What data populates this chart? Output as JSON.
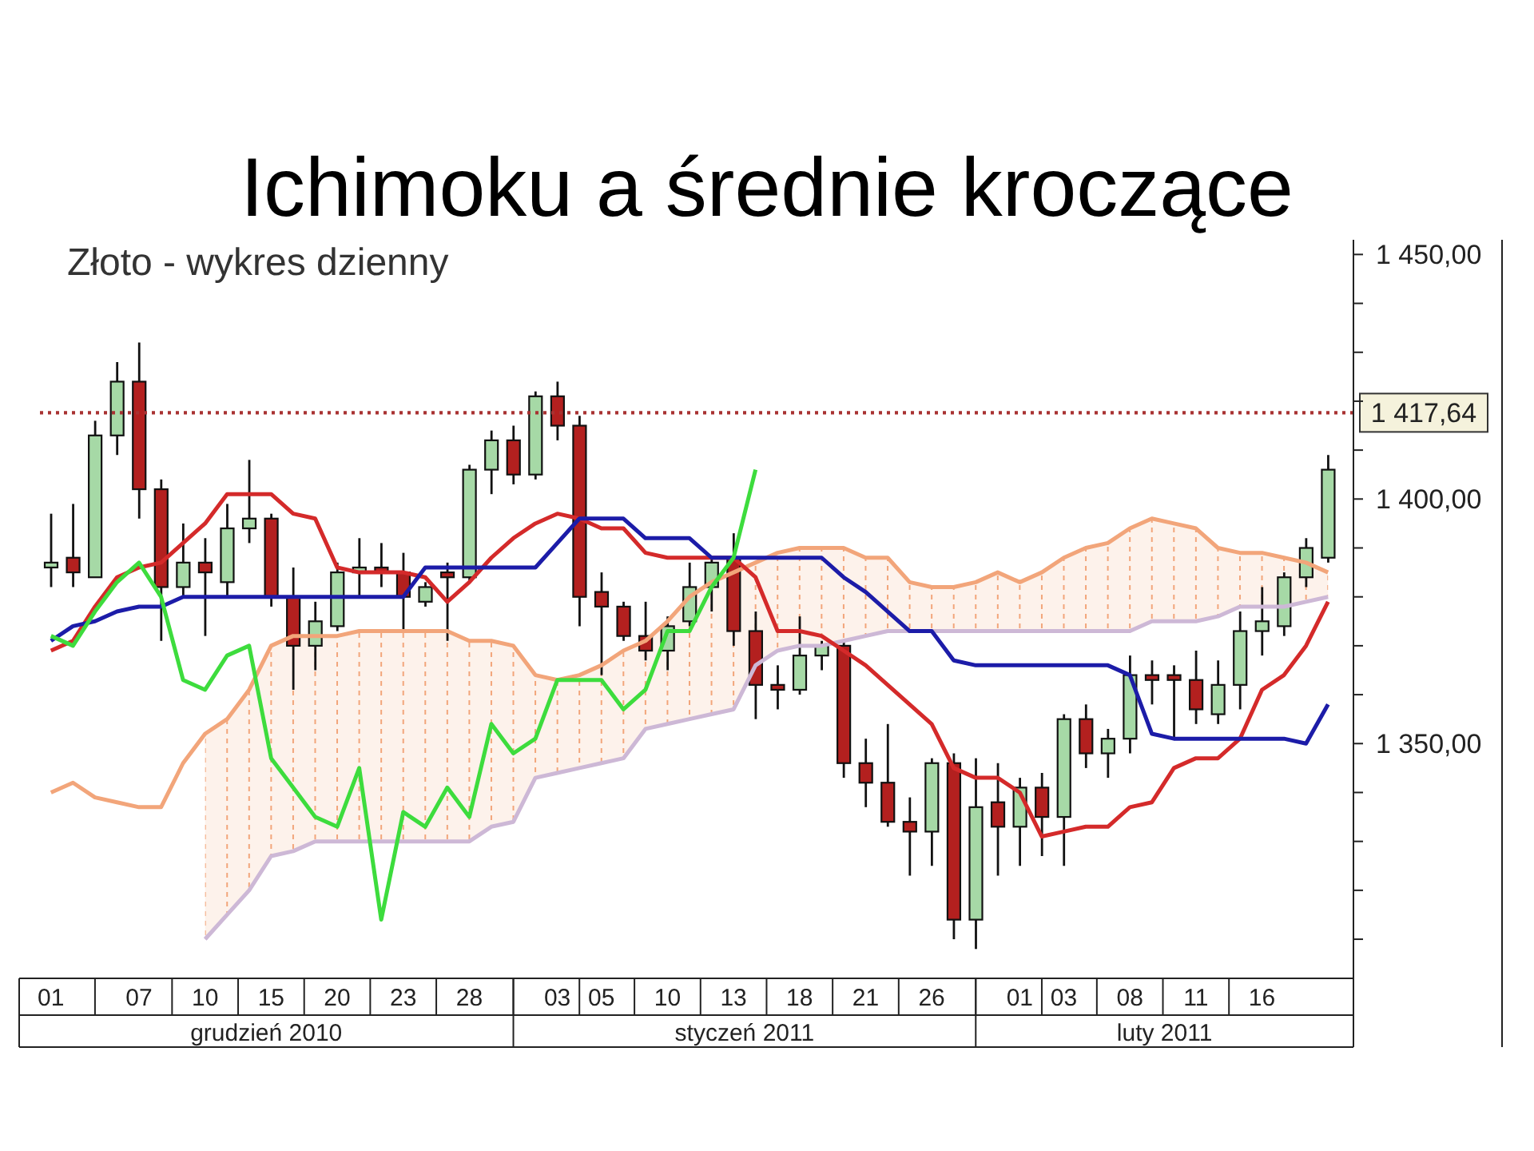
{
  "chart_data": {
    "type": "candlestick",
    "title": "Ichimoku a średnie kroczące",
    "subtitle": "Złoto - wykres dzienny",
    "categories": [
      "01",
      null,
      null,
      null,
      "07",
      null,
      null,
      "10",
      null,
      null,
      "15",
      null,
      null,
      "20",
      null,
      null,
      "23",
      null,
      null,
      "28",
      null,
      null,
      null,
      "03",
      null,
      "05",
      null,
      null,
      "10",
      null,
      null,
      "13",
      null,
      null,
      "18",
      null,
      null,
      "21",
      null,
      null,
      "26",
      null,
      null,
      null,
      "01",
      null,
      "03",
      null,
      null,
      "08",
      null,
      null,
      "11",
      null,
      null,
      "16",
      null,
      null,
      null
    ],
    "ohlc": [
      [
        1386,
        1397,
        1382,
        1387
      ],
      [
        1388,
        1399,
        1382,
        1385
      ],
      [
        1384,
        1416,
        1384,
        1413
      ],
      [
        1413,
        1428,
        1409,
        1424
      ],
      [
        1424,
        1432,
        1396,
        1402
      ],
      [
        1402,
        1404,
        1371,
        1382
      ],
      [
        1382,
        1395,
        1380,
        1387
      ],
      [
        1387,
        1392,
        1372,
        1385
      ],
      [
        1383,
        1399,
        1380,
        1394
      ],
      [
        1394,
        1408,
        1391,
        1396
      ],
      [
        1396,
        1397,
        1378,
        1380
      ],
      [
        1380,
        1386,
        1361,
        1370
      ],
      [
        1370,
        1379,
        1365,
        1375
      ],
      [
        1374,
        1387,
        1373,
        1385
      ],
      [
        1385,
        1392,
        1380,
        1386
      ],
      [
        1386,
        1391,
        1382,
        1385
      ],
      [
        1385,
        1389,
        1373,
        1380
      ],
      [
        1379,
        1383,
        1378,
        1382
      ],
      [
        1385,
        1387,
        1371,
        1384
      ],
      [
        1384,
        1407,
        1383,
        1406
      ],
      [
        1406,
        1414,
        1401,
        1412
      ],
      [
        1412,
        1415,
        1403,
        1405
      ],
      [
        1405,
        1422,
        1404,
        1421
      ],
      [
        1421,
        1424,
        1412,
        1415
      ],
      [
        1415,
        1417,
        1374,
        1380
      ],
      [
        1381,
        1385,
        1364,
        1378
      ],
      [
        1378,
        1379,
        1371,
        1372
      ],
      [
        1372,
        1379,
        1367,
        1369
      ],
      [
        1369,
        1376,
        1365,
        1374
      ],
      [
        1375,
        1387,
        1374,
        1382
      ],
      [
        1382,
        1388,
        1377,
        1387
      ],
      [
        1388,
        1393,
        1370,
        1373
      ],
      [
        1373,
        1377,
        1355,
        1362
      ],
      [
        1362,
        1366,
        1357,
        1361
      ],
      [
        1361,
        1376,
        1360,
        1368
      ],
      [
        1368,
        1371,
        1365,
        1370
      ],
      [
        1370,
        1371,
        1343,
        1346
      ],
      [
        1346,
        1351,
        1337,
        1342
      ],
      [
        1342,
        1354,
        1333,
        1334
      ],
      [
        1334,
        1339,
        1323,
        1332
      ],
      [
        1332,
        1347,
        1325,
        1346
      ],
      [
        1346,
        1348,
        1310,
        1314
      ],
      [
        1314,
        1347,
        1308,
        1337
      ],
      [
        1338,
        1346,
        1323,
        1333
      ],
      [
        1333,
        1343,
        1325,
        1341
      ],
      [
        1341,
        1344,
        1327,
        1335
      ],
      [
        1335,
        1356,
        1325,
        1355
      ],
      [
        1355,
        1358,
        1345,
        1348
      ],
      [
        1348,
        1353,
        1343,
        1351
      ],
      [
        1351,
        1368,
        1348,
        1364
      ],
      [
        1364,
        1367,
        1358,
        1363
      ],
      [
        1364,
        1366,
        1351,
        1363
      ],
      [
        1363,
        1369,
        1354,
        1357
      ],
      [
        1356,
        1367,
        1354,
        1362
      ],
      [
        1362,
        1377,
        1357,
        1373
      ],
      [
        1373,
        1382,
        1368,
        1375
      ],
      [
        1374,
        1385,
        1372,
        1384
      ],
      [
        1384,
        1392,
        1382,
        1390
      ],
      [
        1388,
        1409,
        1387,
        1406
      ]
    ],
    "colors": [
      "#a6d9a6",
      "#b3201f",
      "#a6d9a6",
      "#a6d9a6",
      "#b3201f",
      "#b3201f",
      "#a6d9a6",
      "#b3201f",
      "#a6d9a6",
      "#a6d9a6",
      "#b3201f",
      "#b3201f",
      "#a6d9a6",
      "#a6d9a6",
      "#a6d9a6",
      "#b3201f",
      "#b3201f",
      "#a6d9a6",
      "#b3201f",
      "#a6d9a6",
      "#a6d9a6",
      "#b3201f",
      "#a6d9a6",
      "#b3201f",
      "#b3201f",
      "#b3201f",
      "#b3201f",
      "#b3201f",
      "#a6d9a6",
      "#a6d9a6",
      "#a6d9a6",
      "#b3201f",
      "#b3201f",
      "#b3201f",
      "#a6d9a6",
      "#a6d9a6",
      "#b3201f",
      "#b3201f",
      "#b3201f",
      "#b3201f",
      "#a6d9a6",
      "#b3201f",
      "#a6d9a6",
      "#b3201f",
      "#a6d9a6",
      "#b3201f",
      "#a6d9a6",
      "#b3201f",
      "#a6d9a6",
      "#a6d9a6",
      "#b3201f",
      "#b3201f",
      "#b3201f",
      "#a6d9a6",
      "#a6d9a6",
      "#a6d9a6",
      "#a6d9a6",
      "#a6d9a6",
      "#a6d9a6"
    ],
    "series": [
      {
        "type": "line",
        "color": "#f2a57a",
        "values": [
          1340,
          1342,
          1339,
          1338,
          1337,
          1337,
          1346,
          1352,
          1355,
          1361,
          1370,
          1372,
          1372,
          1372,
          1373,
          1373,
          1373,
          1373,
          1373,
          1371,
          1371,
          1370,
          1364,
          1363,
          1364,
          1366,
          1369,
          1371,
          1375,
          1380,
          1383,
          1385,
          1387,
          1389,
          1390,
          1390,
          1390,
          1388,
          1388,
          1383,
          1382,
          1382,
          1383,
          1385,
          1383,
          1385,
          1388,
          1390,
          1391,
          1394,
          1396,
          1395,
          1394,
          1390,
          1389,
          1389,
          1388,
          1387,
          1385
        ],
        "upper": [
          null,
          null,
          null,
          null,
          null,
          null,
          null,
          1352,
          1355,
          1361,
          1370,
          1372,
          1372,
          1372,
          1373,
          1373,
          1373,
          1373,
          1373,
          1371,
          1371,
          1370,
          1364,
          1363,
          1364,
          1366,
          1369,
          1371,
          1375,
          1380,
          1383,
          1385,
          1387,
          1389,
          1390,
          1390,
          1390,
          1388,
          1388,
          1383,
          1382,
          1382,
          1383,
          1385,
          1383,
          1385,
          1388,
          1390,
          1391,
          1394,
          1396,
          1395,
          1394,
          1390,
          1389,
          1389,
          1388,
          1387,
          1385
        ],
        "lower": [
          null,
          null,
          null,
          null,
          null,
          null,
          null,
          1310,
          1315,
          1320,
          1327,
          1328,
          1330,
          1330,
          1330,
          1330,
          1330,
          1330,
          1330,
          1330,
          1333,
          1334,
          1343,
          1344,
          1345,
          1346,
          1347,
          1353,
          1354,
          1355,
          1356,
          1357,
          1366,
          1369,
          1370,
          1370,
          1371,
          1372,
          1373,
          1373,
          1373,
          1373,
          1373,
          1373,
          1373,
          1373,
          1373,
          1373,
          1373,
          1373,
          1375,
          1375,
          1375,
          1376,
          1378,
          1378,
          1378,
          1379,
          1380
        ]
      },
      {
        "type": "line",
        "color": "#cdb8d6",
        "values": [
          null,
          null,
          null,
          null,
          null,
          null,
          null,
          1310,
          1315,
          1320,
          1327,
          1328,
          1330,
          1330,
          1330,
          1330,
          1330,
          1330,
          1330,
          1330,
          1333,
          1334,
          1343,
          1344,
          1345,
          1346,
          1347,
          1353,
          1354,
          1355,
          1356,
          1357,
          1366,
          1369,
          1370,
          1370,
          1371,
          1372,
          1373,
          1373,
          1373,
          1373,
          1373,
          1373,
          1373,
          1373,
          1373,
          1373,
          1373,
          1373,
          1375,
          1375,
          1375,
          1376,
          1378,
          1378,
          1378,
          1379,
          1380
        ]
      },
      {
        "type": "line",
        "color": "#d42a2a",
        "values": [
          1369,
          1371,
          1378,
          1384,
          1386,
          1387,
          1391,
          1395,
          1401,
          1401,
          1401,
          1397,
          1396,
          1386,
          1385,
          1385,
          1385,
          1384,
          1379,
          1383,
          1388,
          1392,
          1395,
          1397,
          1396,
          1394,
          1394,
          1389,
          1388,
          1388,
          1388,
          1388,
          1384,
          1373,
          1373,
          1372,
          1369,
          1366,
          1362,
          1358,
          1354,
          1345,
          1343,
          1343,
          1340,
          1331,
          1332,
          1333,
          1333,
          1337,
          1338,
          1345,
          1347,
          1347,
          1351,
          1361,
          1364,
          1370,
          1379
        ]
      },
      {
        "type": "line",
        "color": "#1c1ca8",
        "values": [
          1371,
          1374,
          1375,
          1377,
          1378,
          1378,
          1380,
          1380,
          1380,
          1380,
          1380,
          1380,
          1380,
          1380,
          1380,
          1380,
          1380,
          1386,
          1386,
          1386,
          1386,
          1386,
          1386,
          1391,
          1396,
          1396,
          1396,
          1392,
          1392,
          1392,
          1388,
          1388,
          1388,
          1388,
          1388,
          1388,
          1384,
          1381,
          1377,
          1373,
          1373,
          1367,
          1366,
          1366,
          1366,
          1366,
          1366,
          1366,
          1366,
          1364,
          1352,
          1351,
          1351,
          1351,
          1351,
          1351,
          1351,
          1350,
          1358
        ]
      },
      {
        "type": "line",
        "color": "#3ddc3d",
        "values": [
          1372,
          1370,
          1377,
          1383,
          1387,
          1380,
          1363,
          1361,
          1368,
          1370,
          1347,
          1341,
          1335,
          1333,
          1345,
          1314,
          1336,
          1333,
          1341,
          1335,
          1354,
          1348,
          1351,
          1363,
          1363,
          1363,
          1357,
          1361,
          1373,
          1373,
          1382,
          1388,
          1406,
          null,
          null,
          null,
          null,
          null,
          null,
          null,
          null,
          null,
          null,
          null,
          null,
          null,
          null,
          null,
          null,
          null,
          null,
          null,
          null,
          null,
          null,
          null,
          null,
          null,
          null
        ]
      }
    ],
    "ylim": [
      1302,
      1453
    ],
    "yticks": [
      {
        "value": 1310,
        "label": null
      },
      {
        "value": 1320,
        "label": null
      },
      {
        "value": 1330,
        "label": null
      },
      {
        "value": 1340,
        "label": null
      },
      {
        "value": 1350,
        "label": "1 350,00"
      },
      {
        "value": 1360,
        "label": null
      },
      {
        "value": 1370,
        "label": null
      },
      {
        "value": 1380,
        "label": null
      },
      {
        "value": 1390,
        "label": null
      },
      {
        "value": 1400,
        "label": "1 400,00"
      },
      {
        "value": 1410,
        "label": null
      },
      {
        "value": 1420,
        "label": null
      },
      {
        "value": 1430,
        "label": null
      },
      {
        "value": 1440,
        "label": null
      },
      {
        "value": 1450,
        "label": "1 450,00"
      }
    ],
    "ref_lines": [
      {
        "axis": "y",
        "value": 1417.64,
        "label": "1 417,64",
        "color": "#a83232",
        "line_style": "dotted"
      }
    ],
    "annotations": [
      "grudzień 2010",
      "styczeń 2011",
      "luty 2011"
    ]
  }
}
